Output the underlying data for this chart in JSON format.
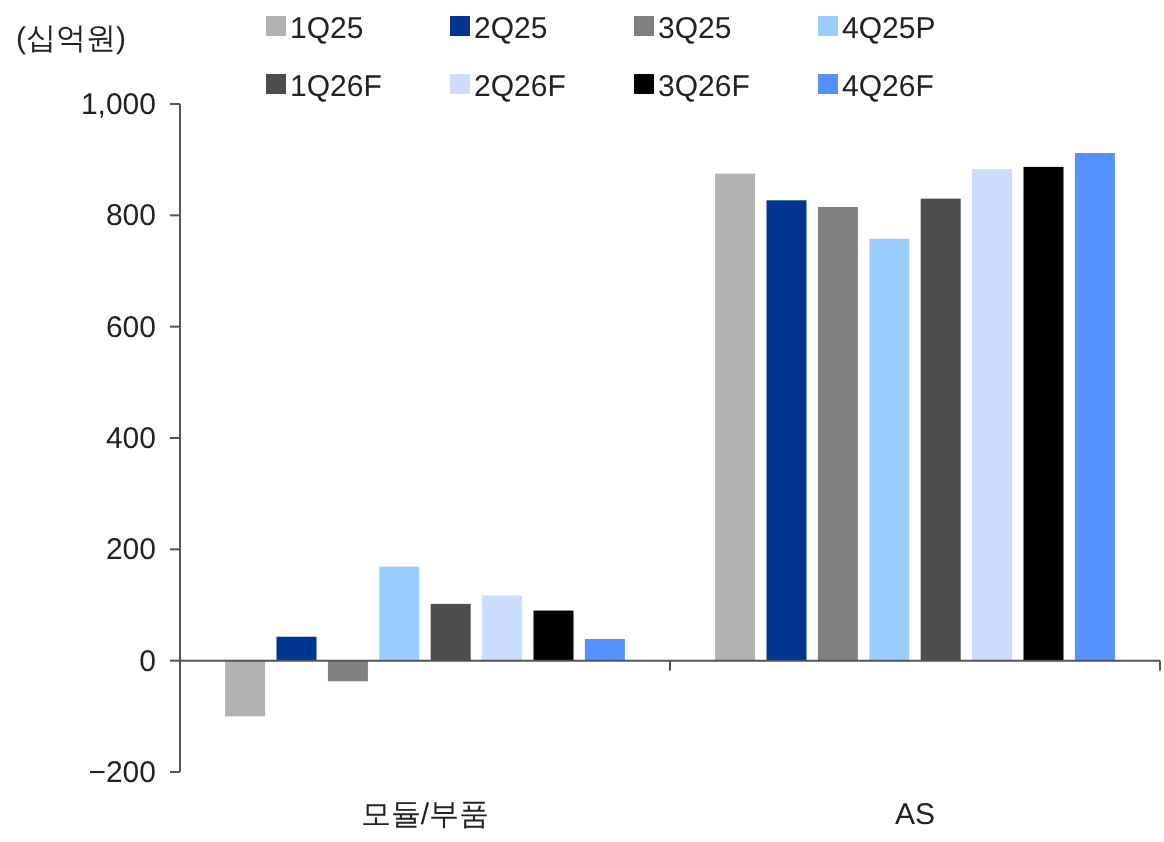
{
  "chart_data": {
    "type": "bar",
    "ylabel": "(십억원)",
    "categories": [
      "모듈/부품",
      "AS"
    ],
    "series": [
      {
        "name": "1Q25",
        "color": "#b2b2b2",
        "values": [
          -100,
          875
        ]
      },
      {
        "name": "2Q25",
        "color": "#003591",
        "values": [
          43,
          827
        ]
      },
      {
        "name": "3Q25",
        "color": "#808080",
        "values": [
          -37,
          815
        ]
      },
      {
        "name": "4Q25P",
        "color": "#99ccff",
        "values": [
          169,
          758
        ]
      },
      {
        "name": "1Q26F",
        "color": "#4d4d4d",
        "values": [
          102,
          830
        ]
      },
      {
        "name": "2Q26F",
        "color": "#ccdcff",
        "values": [
          117,
          883
        ]
      },
      {
        "name": "3Q26F",
        "color": "#000000",
        "values": [
          90,
          887
        ]
      },
      {
        "name": "4Q26F",
        "color": "#5592ff",
        "values": [
          39,
          912
        ]
      }
    ],
    "ylim": [
      -200,
      1000
    ],
    "yticks": [
      {
        "value": -200,
        "label": "−200"
      },
      0,
      200,
      400,
      600,
      800,
      {
        "value": 1000,
        "label": "1,000"
      }
    ],
    "legend": "top"
  }
}
